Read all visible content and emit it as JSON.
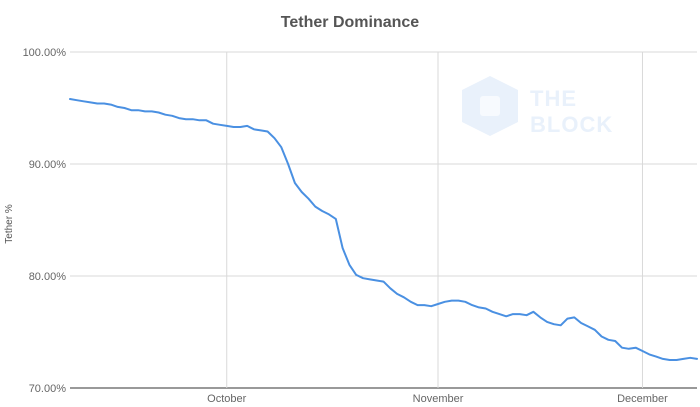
{
  "chart_data": {
    "type": "line",
    "title": "Tether Dominance",
    "xlabel": "",
    "ylabel": "Tether %",
    "ylim": [
      70,
      100
    ],
    "y_ticks": [
      "100.00%",
      "90.00%",
      "80.00%",
      "70.00%"
    ],
    "x_ticks": [
      "October",
      "November",
      "December"
    ],
    "grid": true,
    "series": [
      {
        "color": "#4a90e2",
        "x": [
          "2019-09-08",
          "2019-09-09",
          "2019-09-10",
          "2019-09-11",
          "2019-09-12",
          "2019-09-13",
          "2019-09-14",
          "2019-09-15",
          "2019-09-16",
          "2019-09-17",
          "2019-09-18",
          "2019-09-19",
          "2019-09-20",
          "2019-09-21",
          "2019-09-22",
          "2019-09-23",
          "2019-09-24",
          "2019-09-25",
          "2019-09-26",
          "2019-09-27",
          "2019-09-28",
          "2019-09-29",
          "2019-09-30",
          "2019-10-01",
          "2019-10-02",
          "2019-10-03",
          "2019-10-04",
          "2019-10-05",
          "2019-10-06",
          "2019-10-07",
          "2019-10-08",
          "2019-10-09",
          "2019-10-10",
          "2019-10-11",
          "2019-10-12",
          "2019-10-13",
          "2019-10-14",
          "2019-10-15",
          "2019-10-16",
          "2019-10-17",
          "2019-10-18",
          "2019-10-19",
          "2019-10-20",
          "2019-10-21",
          "2019-10-22",
          "2019-10-23",
          "2019-10-24",
          "2019-10-25",
          "2019-10-26",
          "2019-10-27",
          "2019-10-28",
          "2019-10-29",
          "2019-10-30",
          "2019-10-31",
          "2019-11-01",
          "2019-11-02",
          "2019-11-03",
          "2019-11-04",
          "2019-11-05",
          "2019-11-06",
          "2019-11-07",
          "2019-11-08",
          "2019-11-09",
          "2019-11-10",
          "2019-11-11",
          "2019-11-12",
          "2019-11-13",
          "2019-11-14",
          "2019-11-15",
          "2019-11-16",
          "2019-11-17",
          "2019-11-18",
          "2019-11-19",
          "2019-11-20",
          "2019-11-21",
          "2019-11-22",
          "2019-11-23",
          "2019-11-24",
          "2019-11-25",
          "2019-11-26",
          "2019-11-27",
          "2019-11-28",
          "2019-11-29",
          "2019-11-30",
          "2019-12-01",
          "2019-12-02",
          "2019-12-03",
          "2019-12-04",
          "2019-12-05",
          "2019-12-06",
          "2019-12-07",
          "2019-12-08",
          "2019-12-09"
        ],
        "values": [
          95.8,
          95.7,
          95.6,
          95.5,
          95.4,
          95.4,
          95.3,
          95.1,
          95.0,
          94.8,
          94.8,
          94.7,
          94.7,
          94.6,
          94.4,
          94.3,
          94.1,
          94.0,
          94.0,
          93.9,
          93.9,
          93.6,
          93.5,
          93.4,
          93.3,
          93.3,
          93.4,
          93.1,
          93.0,
          92.9,
          92.3,
          91.5,
          90.0,
          88.3,
          87.5,
          86.9,
          86.2,
          85.8,
          85.5,
          85.1,
          82.5,
          81.0,
          80.1,
          79.8,
          79.7,
          79.6,
          79.5,
          78.9,
          78.4,
          78.1,
          77.7,
          77.4,
          77.4,
          77.3,
          77.5,
          77.7,
          77.8,
          77.8,
          77.7,
          77.4,
          77.2,
          77.1,
          76.8,
          76.6,
          76.4,
          76.6,
          76.6,
          76.5,
          76.8,
          76.3,
          75.9,
          75.7,
          75.6,
          76.2,
          76.3,
          75.8,
          75.5,
          75.2,
          74.6,
          74.3,
          74.2,
          73.6,
          73.5,
          73.6,
          73.3,
          73.0,
          72.8,
          72.6,
          72.5,
          72.5,
          72.6,
          72.7,
          72.6
        ]
      }
    ]
  },
  "watermark": {
    "line1": "THE",
    "line2": "BLOCK"
  }
}
